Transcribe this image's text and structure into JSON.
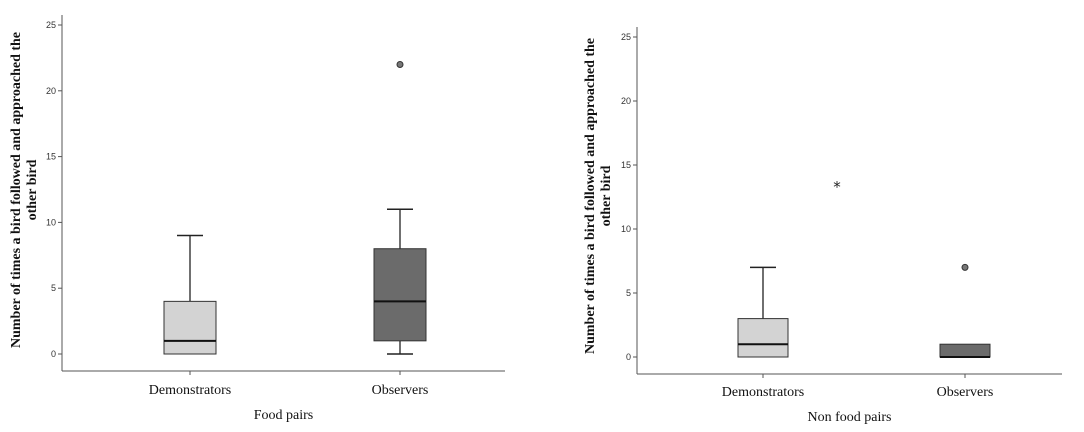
{
  "chart_data": [
    {
      "type": "boxplot",
      "xlabel": "Food pairs",
      "ylabel_lines": [
        "Number of times a bird followed and approached the",
        "other bird"
      ],
      "ylim": [
        0,
        25
      ],
      "yticks": [
        "0",
        "5",
        "10",
        "15",
        "20",
        "25"
      ],
      "grid": false,
      "categories": [
        "Demonstrators",
        "Observers"
      ],
      "boxes": [
        {
          "category": "Demonstrators",
          "min": 0,
          "q1": 0,
          "median": 1,
          "q3": 4,
          "max": 9,
          "color": "#d3d3d3",
          "outliers": []
        },
        {
          "category": "Observers",
          "min": 0,
          "q1": 1,
          "median": 4,
          "q3": 8,
          "max": 11,
          "color": "#6b6b6b",
          "outliers": [
            {
              "value": 22,
              "marker": "circle"
            }
          ]
        }
      ]
    },
    {
      "type": "boxplot",
      "xlabel": "Non food pairs",
      "ylabel_lines": [
        "Number of times a bird followed and approached the",
        "other bird"
      ],
      "ylim": [
        0,
        25
      ],
      "yticks": [
        "0",
        "5",
        "10",
        "15",
        "20",
        "25"
      ],
      "grid": false,
      "categories": [
        "Demonstrators",
        "Observers"
      ],
      "boxes": [
        {
          "category": "Demonstrators",
          "min": 0,
          "q1": 0,
          "median": 1,
          "q3": 3,
          "max": 7,
          "color": "#d3d3d3",
          "outliers": [
            {
              "value": 13.5,
              "marker": "star",
              "symbol": "*"
            }
          ]
        },
        {
          "category": "Observers",
          "min": 0,
          "q1": 0,
          "median": 0,
          "q3": 1,
          "max": 1,
          "color": "#6b6b6b",
          "outliers": [
            {
              "value": 7,
              "marker": "circle"
            }
          ]
        }
      ]
    }
  ]
}
